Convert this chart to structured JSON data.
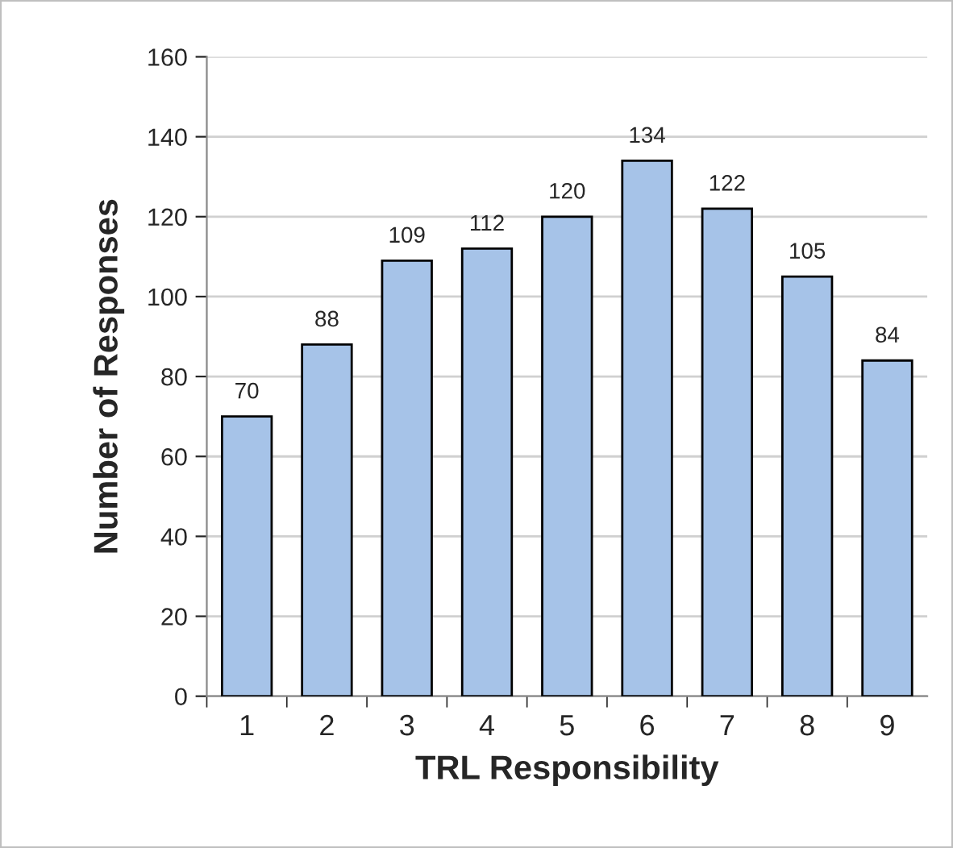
{
  "chart_data": {
    "type": "bar",
    "xlabel": "TRL Responsibility",
    "ylabel": "Number of Responses",
    "categories": [
      "1",
      "2",
      "3",
      "4",
      "5",
      "6",
      "7",
      "8",
      "9"
    ],
    "values": [
      70,
      88,
      109,
      112,
      120,
      134,
      122,
      105,
      84
    ],
    "color": "#a6c3e8",
    "ylim": [
      0,
      160
    ],
    "yticks": [
      0,
      20,
      40,
      60,
      80,
      100,
      120,
      140,
      160
    ],
    "grid": "y",
    "data_labels": true
  }
}
